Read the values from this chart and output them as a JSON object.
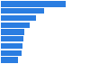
{
  "values": [
    5.8,
    3.85,
    3.1,
    2.55,
    2.1,
    2.0,
    1.9,
    1.85,
    1.55
  ],
  "bar_color": "#2a7de1",
  "background_color": "#ffffff",
  "xlim": [
    0,
    6.2
  ],
  "bar_height": 0.82
}
